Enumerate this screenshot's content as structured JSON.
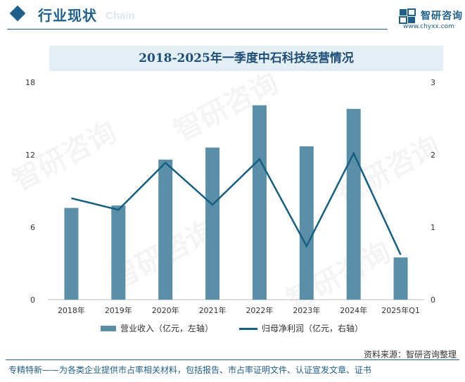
{
  "header": {
    "title": "行业现状",
    "ghost_text": "Chain"
  },
  "logo": {
    "name": "智研咨询",
    "url": "www.chyxx.com"
  },
  "watermark": "智研咨询",
  "colors": {
    "brand": "#1f5f8b",
    "bar": "#5b8fa8",
    "line": "#155f82",
    "title_band": "#e3eef5"
  },
  "chart_data": {
    "type": "bar",
    "title": "2018-2025年一季度中石科技经营情况",
    "categories": [
      "2018年",
      "2019年",
      "2020年",
      "2021年",
      "2022年",
      "2023年",
      "2024年",
      "2025年Q1"
    ],
    "series": [
      {
        "name": "营业收入（亿元，左轴）",
        "type": "bar",
        "axis": "left",
        "values": [
          7.6,
          7.8,
          11.6,
          12.6,
          16.1,
          12.7,
          15.8,
          3.5
        ]
      },
      {
        "name": "归母净利润（亿元，右轴）",
        "type": "line",
        "axis": "right",
        "values": [
          1.4,
          1.24,
          1.89,
          1.31,
          1.94,
          0.74,
          2.02,
          0.62
        ]
      }
    ],
    "y_left": {
      "range": [
        0,
        18
      ],
      "ticks": [
        "0",
        "6",
        "12",
        "18"
      ]
    },
    "y_right": {
      "range": [
        0,
        3
      ],
      "ticks": [
        "0",
        "1",
        "2",
        "3"
      ]
    },
    "grid": false,
    "legend": "bottom"
  },
  "footer": {
    "source": "资料来源：智研咨询整理",
    "text": "专精特新——为各类企业提供市占率相关材料，包括报告、市占率证明文件、认证宣发文章、证书"
  }
}
